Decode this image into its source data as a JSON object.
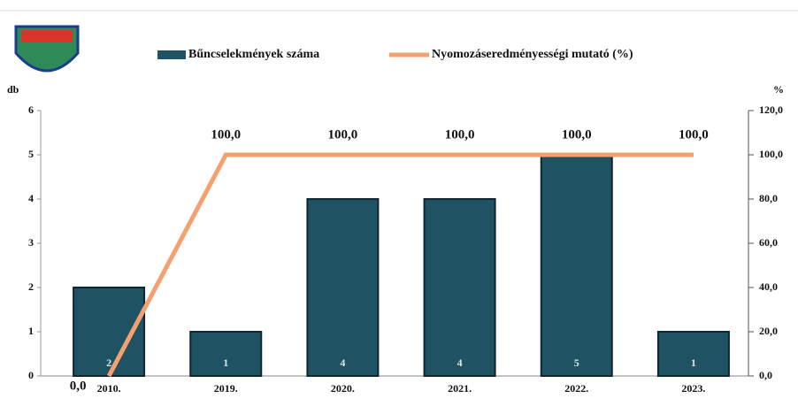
{
  "chart_data": {
    "type": "bar",
    "categories": [
      "2010.",
      "2019.",
      "2020.",
      "2021.",
      "2022.",
      "2023."
    ],
    "series": [
      {
        "name": "Bűncselekmények száma",
        "type": "bar",
        "color": "#1f5363",
        "values": [
          2,
          1,
          4,
          4,
          5,
          1
        ]
      },
      {
        "name": "Nyomozáseredményességi mutató (%)",
        "type": "line",
        "axis": "y2",
        "color": "#f4a070",
        "values": [
          0,
          100,
          100,
          100,
          100,
          100
        ],
        "value_labels": [
          "0,0",
          "100,0",
          "100,0",
          "100,0",
          "100,0",
          "100,0"
        ]
      }
    ],
    "ylabel": "db",
    "y2label": "%",
    "ylim": [
      0,
      6
    ],
    "yticks": [
      0,
      1,
      2,
      3,
      4,
      5,
      6
    ],
    "y2lim": [
      0,
      120
    ],
    "y2ticks": [
      {
        "value": 0,
        "label": "0,0"
      },
      {
        "value": 20,
        "label": "20,0"
      },
      {
        "value": 40,
        "label": "40,0"
      },
      {
        "value": 60,
        "label": "60,0"
      },
      {
        "value": 80,
        "label": "80,0"
      },
      {
        "value": 100,
        "label": "100,0"
      },
      {
        "value": 120,
        "label": "120,0"
      }
    ]
  }
}
